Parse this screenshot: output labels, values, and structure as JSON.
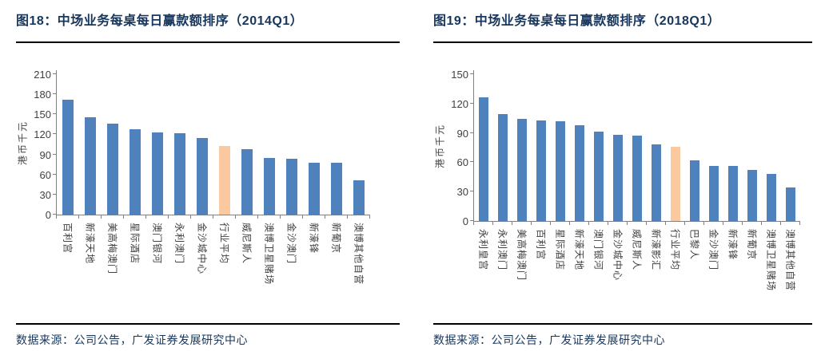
{
  "colors": {
    "bar": "#4F81BD",
    "highlight": "#FAC99F",
    "axis": "#808080",
    "heading": "#17365D",
    "tick_text": "#404040",
    "rule": "#000000"
  },
  "chart_data": [
    {
      "type": "bar",
      "title": "图18：中场业务每桌每日赢款额排序（2014Q1）",
      "source": "数据来源：公司公告，广发证券发展研究中心",
      "ylabel": "港币千元",
      "ylim": [
        0,
        210
      ],
      "yticks": [
        0,
        30,
        60,
        90,
        120,
        150,
        180,
        210
      ],
      "grid": false,
      "legend": "none",
      "categories": [
        "百利宫",
        "新濠天地",
        "美高梅澳门",
        "星际酒店",
        "澳门银河",
        "永利澳门",
        "金沙城中心",
        "行业平均",
        "威尼斯人",
        "澳博卫星赌场",
        "金沙澳门",
        "新濠锋",
        "新葡京",
        "澳博其他自营"
      ],
      "values": [
        172,
        146,
        136,
        128,
        123,
        122,
        114,
        103,
        98,
        85,
        83,
        78,
        77,
        51
      ],
      "highlight_category": "行业平均",
      "highlight_index": 7
    },
    {
      "type": "bar",
      "title": "图19：中场业务每桌每日赢款额排序（2018Q1）",
      "source": "数据来源：公司公告，广发证券发展研究中心",
      "ylabel": "港币千元",
      "ylim": [
        0,
        150
      ],
      "yticks": [
        0,
        30,
        60,
        90,
        120,
        150
      ],
      "grid": false,
      "legend": "none",
      "categories": [
        "永利皇宫",
        "永利澳门",
        "美高梅澳门",
        "百利宫",
        "星际酒店",
        "新濠天地",
        "澳门银河",
        "金沙城中心",
        "威尼斯人",
        "新濠影汇",
        "行业平均",
        "巴黎人",
        "金沙澳门",
        "新濠锋",
        "新葡京",
        "澳博卫星赌场",
        "澳博其他自营"
      ],
      "values": [
        126,
        109,
        104,
        103,
        102,
        98,
        91,
        88,
        87,
        78,
        76,
        62,
        56,
        56,
        52,
        48,
        34
      ],
      "highlight_category": "行业平均",
      "highlight_index": 10
    }
  ]
}
